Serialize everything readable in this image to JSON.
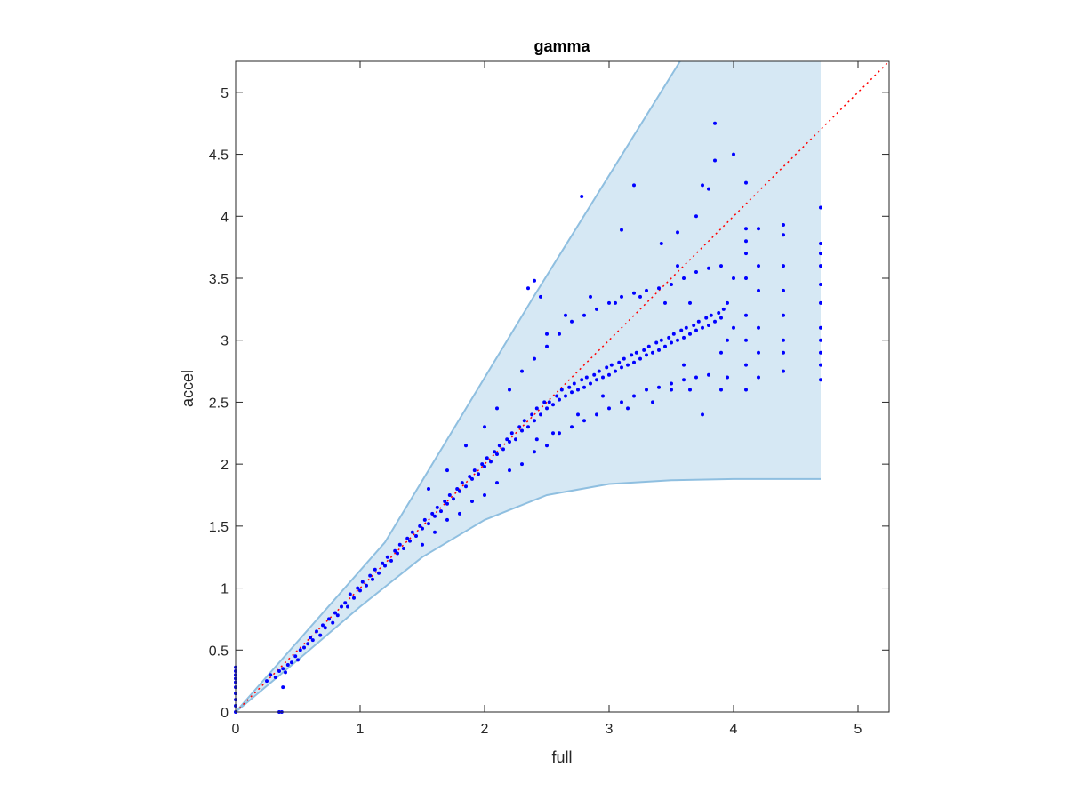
{
  "chart_data": {
    "type": "scatter",
    "title": "gamma",
    "xlabel": "full",
    "ylabel": "accel",
    "xlim": [
      0,
      5.25
    ],
    "ylim": [
      0,
      5.25
    ],
    "xticks": [
      0,
      1,
      2,
      3,
      4,
      5
    ],
    "yticks": [
      0,
      0.5,
      1,
      1.5,
      2,
      2.5,
      3,
      3.5,
      4,
      4.5,
      5
    ],
    "grid": false,
    "legend": "none",
    "colors": {
      "points": "#0000ff",
      "band_fill": "#d6e8f4",
      "band_edge": "#8fbfe0",
      "reference": "#ff0000",
      "axes": "#262626"
    },
    "reference_line": {
      "style": "dotted",
      "from": [
        0,
        0
      ],
      "to": [
        5.25,
        5.25
      ]
    },
    "band": {
      "x_max": 4.7,
      "upper": [
        [
          0,
          0
        ],
        [
          1.2,
          1.37
        ],
        [
          2.4,
          3.36
        ],
        [
          3.57,
          5.25
        ]
      ],
      "lower": [
        [
          0,
          0
        ],
        [
          0.5,
          0.42
        ],
        [
          1.0,
          0.85
        ],
        [
          1.5,
          1.25
        ],
        [
          2.0,
          1.55
        ],
        [
          2.5,
          1.75
        ],
        [
          3.0,
          1.84
        ],
        [
          3.5,
          1.87
        ],
        [
          4.0,
          1.88
        ],
        [
          4.7,
          1.88
        ]
      ]
    },
    "series": [
      {
        "values": [
          [
            0.0,
            0.0
          ],
          [
            0.0,
            0.05
          ],
          [
            0.0,
            0.1
          ],
          [
            0.0,
            0.15
          ],
          [
            0.0,
            0.2
          ],
          [
            0.0,
            0.24
          ],
          [
            0.0,
            0.27
          ],
          [
            0.0,
            0.3
          ],
          [
            0.0,
            0.33
          ],
          [
            0.0,
            0.36
          ],
          [
            0.35,
            0.0
          ],
          [
            0.37,
            0.0
          ],
          [
            0.25,
            0.25
          ],
          [
            0.28,
            0.3
          ],
          [
            0.32,
            0.28
          ],
          [
            0.35,
            0.33
          ],
          [
            0.38,
            0.35
          ],
          [
            0.4,
            0.32
          ],
          [
            0.38,
            0.2
          ],
          [
            0.42,
            0.38
          ],
          [
            0.45,
            0.4
          ],
          [
            0.48,
            0.45
          ],
          [
            0.5,
            0.42
          ],
          [
            0.52,
            0.5
          ],
          [
            0.55,
            0.52
          ],
          [
            0.58,
            0.55
          ],
          [
            0.6,
            0.6
          ],
          [
            0.62,
            0.58
          ],
          [
            0.65,
            0.65
          ],
          [
            0.68,
            0.62
          ],
          [
            0.7,
            0.7
          ],
          [
            0.72,
            0.68
          ],
          [
            0.75,
            0.75
          ],
          [
            0.78,
            0.72
          ],
          [
            0.8,
            0.8
          ],
          [
            0.82,
            0.78
          ],
          [
            0.85,
            0.85
          ],
          [
            0.88,
            0.88
          ],
          [
            0.9,
            0.85
          ],
          [
            0.92,
            0.95
          ],
          [
            0.95,
            0.92
          ],
          [
            0.98,
            1.0
          ],
          [
            1.0,
            0.98
          ],
          [
            1.02,
            1.05
          ],
          [
            1.05,
            1.02
          ],
          [
            1.08,
            1.1
          ],
          [
            1.1,
            1.07
          ],
          [
            1.12,
            1.15
          ],
          [
            1.15,
            1.12
          ],
          [
            1.18,
            1.2
          ],
          [
            1.2,
            1.18
          ],
          [
            1.22,
            1.25
          ],
          [
            1.25,
            1.22
          ],
          [
            1.28,
            1.3
          ],
          [
            1.3,
            1.28
          ],
          [
            1.32,
            1.35
          ],
          [
            1.35,
            1.32
          ],
          [
            1.38,
            1.4
          ],
          [
            1.4,
            1.38
          ],
          [
            1.42,
            1.45
          ],
          [
            1.45,
            1.42
          ],
          [
            1.48,
            1.5
          ],
          [
            1.5,
            1.48
          ],
          [
            1.52,
            1.55
          ],
          [
            1.55,
            1.52
          ],
          [
            1.58,
            1.6
          ],
          [
            1.6,
            1.58
          ],
          [
            1.62,
            1.65
          ],
          [
            1.65,
            1.62
          ],
          [
            1.68,
            1.7
          ],
          [
            1.7,
            1.68
          ],
          [
            1.72,
            1.75
          ],
          [
            1.75,
            1.72
          ],
          [
            1.78,
            1.8
          ],
          [
            1.8,
            1.78
          ],
          [
            1.82,
            1.85
          ],
          [
            1.85,
            1.82
          ],
          [
            1.88,
            1.9
          ],
          [
            1.9,
            1.88
          ],
          [
            1.92,
            1.95
          ],
          [
            1.95,
            1.92
          ],
          [
            1.98,
            2.0
          ],
          [
            2.0,
            1.98
          ],
          [
            2.02,
            2.05
          ],
          [
            2.05,
            2.02
          ],
          [
            2.08,
            2.1
          ],
          [
            2.1,
            2.08
          ],
          [
            2.12,
            2.15
          ],
          [
            2.15,
            2.12
          ],
          [
            2.18,
            2.2
          ],
          [
            2.2,
            2.18
          ],
          [
            2.22,
            2.25
          ],
          [
            2.25,
            2.2
          ],
          [
            2.28,
            2.3
          ],
          [
            2.3,
            2.27
          ],
          [
            2.32,
            2.35
          ],
          [
            2.35,
            2.3
          ],
          [
            2.38,
            2.4
          ],
          [
            2.4,
            2.35
          ],
          [
            2.42,
            2.45
          ],
          [
            2.45,
            2.4
          ],
          [
            2.48,
            2.5
          ],
          [
            2.5,
            2.45
          ],
          [
            2.52,
            2.5
          ],
          [
            2.55,
            2.48
          ],
          [
            2.58,
            2.55
          ],
          [
            2.6,
            2.52
          ],
          [
            2.62,
            2.6
          ],
          [
            2.65,
            2.55
          ],
          [
            2.68,
            2.62
          ],
          [
            2.7,
            2.58
          ],
          [
            2.72,
            2.65
          ],
          [
            2.75,
            2.6
          ],
          [
            2.78,
            2.68
          ],
          [
            2.8,
            2.62
          ],
          [
            2.82,
            2.7
          ],
          [
            2.85,
            2.65
          ],
          [
            2.88,
            2.72
          ],
          [
            2.9,
            2.68
          ],
          [
            2.92,
            2.75
          ],
          [
            2.95,
            2.7
          ],
          [
            2.98,
            2.78
          ],
          [
            3.0,
            2.72
          ],
          [
            3.02,
            2.8
          ],
          [
            3.05,
            2.75
          ],
          [
            3.08,
            2.82
          ],
          [
            3.1,
            2.78
          ],
          [
            3.12,
            2.85
          ],
          [
            3.15,
            2.8
          ],
          [
            3.18,
            2.88
          ],
          [
            3.2,
            2.82
          ],
          [
            3.22,
            2.9
          ],
          [
            3.25,
            2.85
          ],
          [
            3.28,
            2.92
          ],
          [
            3.3,
            2.88
          ],
          [
            3.32,
            2.95
          ],
          [
            3.35,
            2.9
          ],
          [
            3.38,
            2.98
          ],
          [
            3.4,
            2.92
          ],
          [
            3.42,
            3.0
          ],
          [
            3.45,
            2.95
          ],
          [
            3.48,
            3.02
          ],
          [
            3.5,
            2.98
          ],
          [
            3.52,
            3.05
          ],
          [
            3.55,
            3.0
          ],
          [
            3.58,
            3.08
          ],
          [
            3.6,
            3.02
          ],
          [
            3.62,
            3.1
          ],
          [
            3.65,
            3.05
          ],
          [
            3.68,
            3.12
          ],
          [
            3.7,
            3.08
          ],
          [
            3.72,
            3.15
          ],
          [
            3.75,
            3.1
          ],
          [
            3.78,
            3.18
          ],
          [
            3.8,
            3.12
          ],
          [
            3.82,
            3.2
          ],
          [
            3.85,
            3.15
          ],
          [
            3.88,
            3.22
          ],
          [
            3.9,
            3.18
          ],
          [
            3.92,
            3.25
          ],
          [
            1.5,
            1.35
          ],
          [
            1.6,
            1.45
          ],
          [
            1.7,
            1.55
          ],
          [
            1.8,
            1.6
          ],
          [
            1.9,
            1.7
          ],
          [
            2.0,
            1.75
          ],
          [
            2.1,
            1.85
          ],
          [
            2.2,
            1.95
          ],
          [
            2.3,
            2.0
          ],
          [
            2.4,
            2.1
          ],
          [
            2.5,
            2.15
          ],
          [
            2.6,
            2.25
          ],
          [
            2.7,
            2.3
          ],
          [
            2.8,
            2.35
          ],
          [
            2.9,
            2.4
          ],
          [
            3.0,
            2.45
          ],
          [
            3.1,
            2.5
          ],
          [
            3.2,
            2.55
          ],
          [
            3.3,
            2.6
          ],
          [
            3.4,
            2.62
          ],
          [
            3.5,
            2.65
          ],
          [
            3.6,
            2.68
          ],
          [
            3.7,
            2.7
          ],
          [
            3.8,
            2.72
          ],
          [
            1.55,
            1.8
          ],
          [
            1.7,
            1.95
          ],
          [
            1.85,
            2.15
          ],
          [
            2.0,
            2.3
          ],
          [
            2.1,
            2.45
          ],
          [
            2.2,
            2.6
          ],
          [
            2.3,
            2.75
          ],
          [
            2.4,
            2.85
          ],
          [
            2.5,
            2.95
          ],
          [
            2.6,
            3.05
          ],
          [
            2.7,
            3.15
          ],
          [
            2.8,
            3.2
          ],
          [
            2.9,
            3.25
          ],
          [
            3.0,
            3.3
          ],
          [
            3.1,
            3.35
          ],
          [
            3.2,
            3.38
          ],
          [
            3.3,
            3.4
          ],
          [
            3.4,
            3.42
          ],
          [
            3.5,
            3.45
          ],
          [
            3.6,
            3.5
          ],
          [
            3.7,
            3.55
          ],
          [
            3.8,
            3.58
          ],
          [
            3.9,
            3.6
          ],
          [
            2.4,
            3.48
          ],
          [
            2.45,
            3.35
          ],
          [
            2.35,
            3.42
          ],
          [
            2.78,
            4.16
          ],
          [
            3.2,
            4.25
          ],
          [
            3.1,
            3.89
          ],
          [
            3.42,
            3.78
          ],
          [
            3.55,
            3.87
          ],
          [
            3.7,
            4.0
          ],
          [
            3.75,
            4.25
          ],
          [
            3.8,
            4.22
          ],
          [
            3.85,
            4.45
          ],
          [
            3.85,
            4.75
          ],
          [
            4.0,
            4.5
          ],
          [
            4.1,
            4.27
          ],
          [
            4.1,
            3.9
          ],
          [
            4.1,
            3.8
          ],
          [
            4.1,
            3.7
          ],
          [
            4.1,
            3.5
          ],
          [
            4.1,
            3.2
          ],
          [
            4.1,
            3.0
          ],
          [
            4.1,
            2.8
          ],
          [
            4.1,
            2.6
          ],
          [
            4.2,
            3.9
          ],
          [
            4.2,
            3.6
          ],
          [
            4.2,
            3.4
          ],
          [
            4.2,
            3.1
          ],
          [
            4.2,
            2.9
          ],
          [
            4.2,
            2.7
          ],
          [
            4.4,
            3.93
          ],
          [
            4.4,
            3.85
          ],
          [
            4.4,
            3.6
          ],
          [
            4.4,
            3.4
          ],
          [
            4.4,
            3.2
          ],
          [
            4.4,
            3.0
          ],
          [
            4.4,
            2.9
          ],
          [
            4.4,
            2.75
          ],
          [
            4.7,
            4.07
          ],
          [
            4.7,
            3.78
          ],
          [
            4.7,
            3.7
          ],
          [
            4.7,
            3.6
          ],
          [
            4.7,
            3.45
          ],
          [
            4.7,
            3.3
          ],
          [
            4.7,
            3.1
          ],
          [
            4.7,
            3.0
          ],
          [
            4.7,
            2.9
          ],
          [
            4.7,
            2.8
          ],
          [
            4.7,
            2.68
          ],
          [
            3.95,
            3.3
          ],
          [
            3.95,
            3.0
          ],
          [
            3.95,
            2.7
          ],
          [
            4.0,
            3.5
          ],
          [
            4.0,
            3.1
          ],
          [
            3.9,
            2.9
          ],
          [
            3.9,
            2.6
          ],
          [
            3.75,
            2.4
          ],
          [
            3.65,
            2.6
          ],
          [
            3.65,
            3.3
          ],
          [
            3.6,
            2.8
          ],
          [
            3.55,
            3.6
          ],
          [
            3.5,
            2.6
          ],
          [
            3.45,
            3.3
          ],
          [
            3.35,
            2.5
          ],
          [
            3.25,
            3.35
          ],
          [
            3.15,
            2.45
          ],
          [
            3.05,
            3.3
          ],
          [
            2.95,
            2.55
          ],
          [
            2.85,
            3.35
          ],
          [
            2.75,
            2.4
          ],
          [
            2.65,
            3.2
          ],
          [
            2.55,
            2.25
          ],
          [
            2.5,
            3.05
          ],
          [
            2.42,
            2.2
          ]
        ]
      }
    ]
  }
}
